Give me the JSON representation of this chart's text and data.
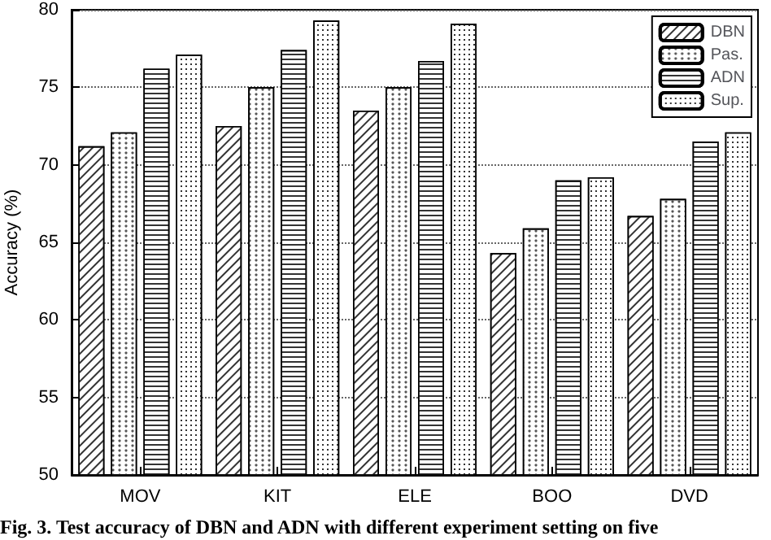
{
  "chart_data": {
    "type": "bar",
    "ylabel": "Accuracy (%)",
    "categories": [
      "MOV",
      "KIT",
      "ELE",
      "BOO",
      "DVD"
    ],
    "series": [
      {
        "name": "DBN",
        "color": "#ffffff",
        "values": [
          71.2,
          72.5,
          73.5,
          64.3,
          66.7
        ]
      },
      {
        "name": "Pas.",
        "color": "#ffffff",
        "values": [
          72.1,
          75.0,
          75.0,
          65.9,
          67.8
        ]
      },
      {
        "name": "ADN",
        "color": "#ffffff",
        "values": [
          76.2,
          77.4,
          76.7,
          69.0,
          71.5
        ]
      },
      {
        "name": "Sup.",
        "color": "#ffffff",
        "values": [
          77.1,
          79.3,
          79.1,
          69.2,
          72.1
        ]
      }
    ],
    "ylim": [
      50,
      80
    ],
    "yticks": [
      50,
      55,
      60,
      65,
      70,
      75,
      80
    ],
    "grid": "y",
    "legend": "top right",
    "annotations": [
      "Fig. 3. Test accuracy of DBN and ADN with different experiment setting on five"
    ]
  }
}
